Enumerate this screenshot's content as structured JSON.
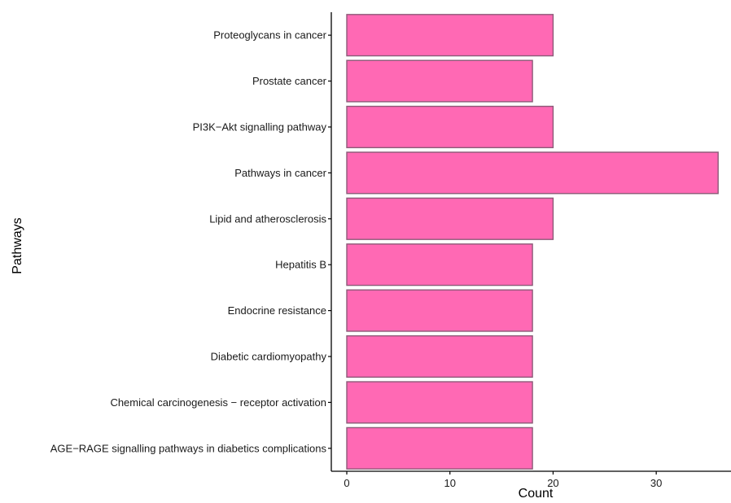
{
  "chart_data": {
    "type": "bar",
    "orientation": "horizontal",
    "xlabel": "Count",
    "ylabel": "Pathways",
    "categories": [
      "Proteoglycans in cancer",
      "Prostate cancer",
      "PI3K−Akt signalling pathway",
      "Pathways in cancer",
      "Lipid and atherosclerosis",
      "Hepatitis B",
      "Endocrine resistance",
      "Diabetic cardiomyopathy",
      "Chemical carcinogenesis − receptor activation",
      "AGE−RAGE signalling pathways in diabetics complications"
    ],
    "values": [
      20,
      18,
      20,
      36,
      20,
      18,
      18,
      18,
      18,
      18
    ],
    "xlim": [
      -1.5,
      37.8
    ],
    "xticks": [
      0,
      10,
      20,
      30
    ],
    "grid": false,
    "legend": "none",
    "bar_color": "#ff69b4",
    "bar_edge_color": "#8c5a78",
    "axis_color": "#000000"
  }
}
